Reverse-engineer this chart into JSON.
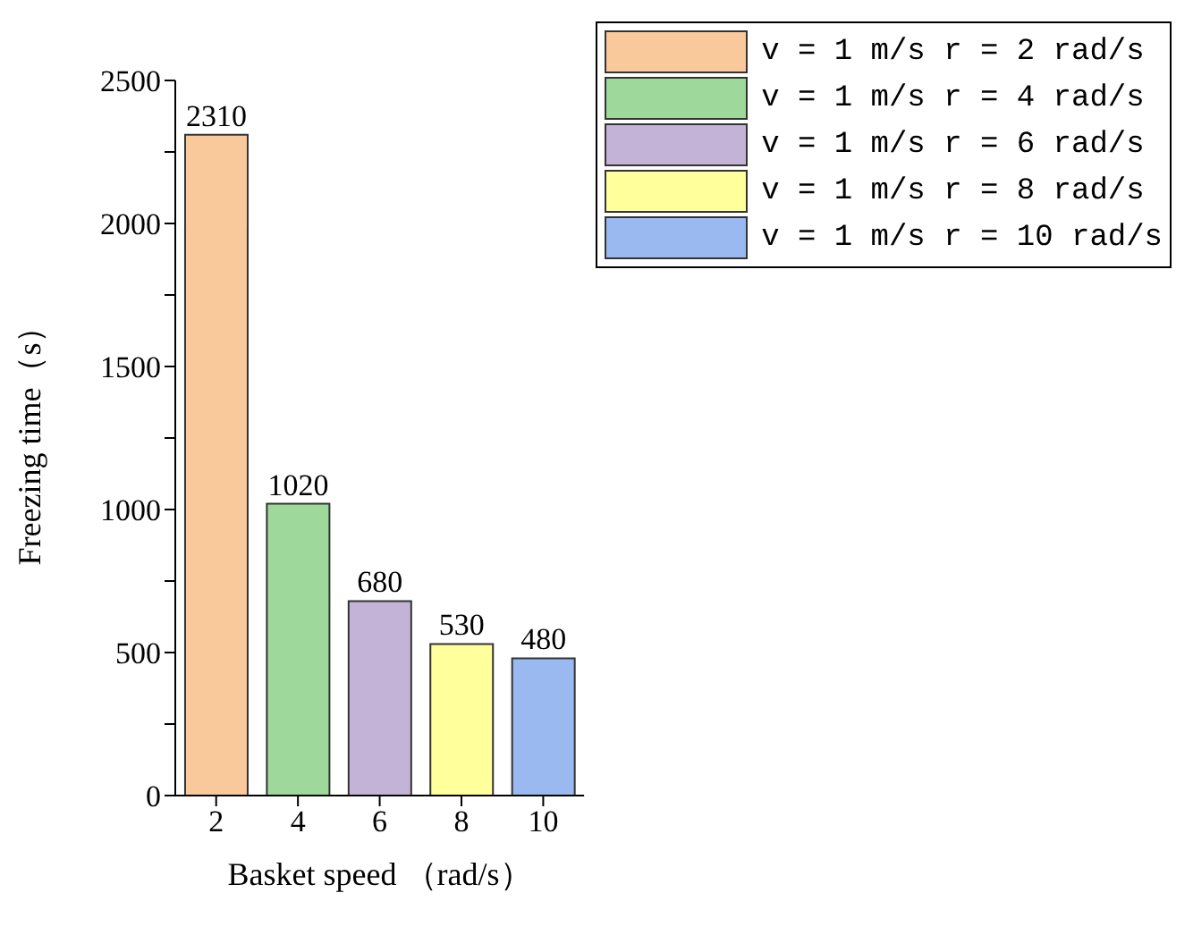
{
  "chart_data": {
    "type": "bar",
    "xlabel": "Basket speed （rad/s）",
    "ylabel": "Freezing time（s）",
    "categories": [
      "2",
      "4",
      "6",
      "8",
      "10"
    ],
    "stacked": true,
    "data_labels": true,
    "legend": "top right",
    "grid": false,
    "ylim": [
      0,
      2500
    ],
    "yticks": [
      0,
      {
        "value": 250,
        "label": null
      },
      500,
      {
        "value": 750,
        "label": null
      },
      1000,
      {
        "value": 1250,
        "label": null
      },
      1500,
      {
        "value": 1750,
        "label": null
      },
      2000,
      {
        "value": 2250,
        "label": null
      },
      2500
    ],
    "series": [
      {
        "name": "v = 1 m/s r = 2 rad/s",
        "color": "#f9c89b",
        "values": [
          2310,
          null,
          null,
          null,
          null
        ]
      },
      {
        "name": "v = 1 m/s r = 4 rad/s",
        "color": "#9ed89b",
        "values": [
          null,
          1020,
          null,
          null,
          null
        ]
      },
      {
        "name": "v = 1 m/s r = 6 rad/s",
        "color": "#c3b3d7",
        "values": [
          null,
          null,
          680,
          null,
          null
        ]
      },
      {
        "name": "v = 1 m/s r = 8 rad/s",
        "color": "#ffff9b",
        "values": [
          null,
          null,
          null,
          530,
          null
        ]
      },
      {
        "name": "v = 1 m/s r = 10 rad/s",
        "color": "#9ab9f0",
        "values": [
          null,
          null,
          null,
          null,
          480
        ]
      }
    ]
  }
}
